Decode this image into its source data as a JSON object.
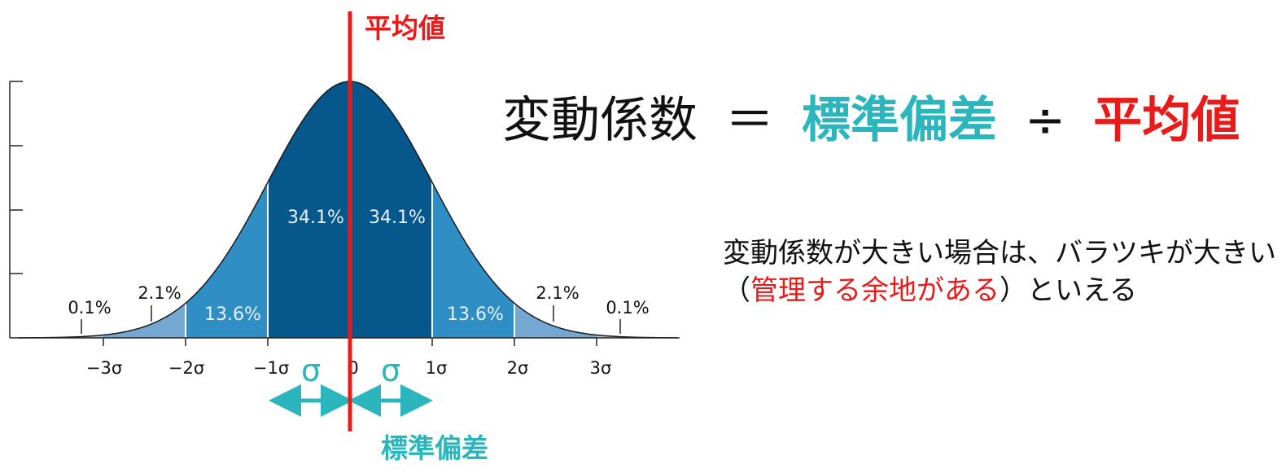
{
  "colors": {
    "accent_red": "#e81a1a",
    "accent_teal": "#2bb6bd",
    "band_inner": "#05578c",
    "band_middle": "#2f8fc4",
    "band_outer": "#74a8d2",
    "band_tail": "#a9c9e4"
  },
  "labels": {
    "mean": "平均値",
    "std_dev": "標準偏差",
    "sigma_symbol": "σ"
  },
  "ticks": [
    "−3σ",
    "−2σ",
    "−1σ",
    "0",
    "1σ",
    "2σ",
    "3σ"
  ],
  "percentages": {
    "inner_left": "34.1%",
    "inner_right": "34.1%",
    "middle_left": "13.6%",
    "middle_right": "13.6%",
    "outer_left": "2.1%",
    "outer_right": "2.1%",
    "tail_left": "0.1%",
    "tail_right": "0.1%"
  },
  "formula": {
    "lhs": "変動係数",
    "equals": "＝",
    "numerator": "標準偏差",
    "divide": "÷",
    "denominator": "平均値"
  },
  "description": {
    "part1": "変動係数が大きい場合は、バラツキが大きい（",
    "highlight": "管理する余地がある",
    "part2": "）といえる"
  }
}
